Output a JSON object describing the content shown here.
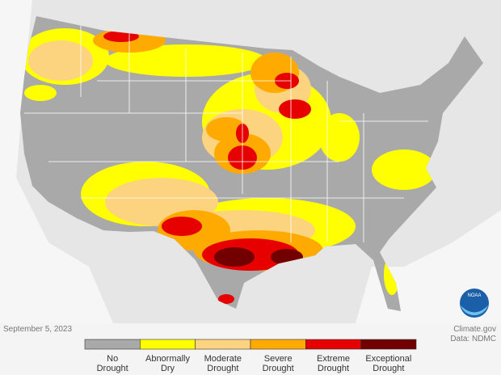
{
  "date": "September 5, 2023",
  "credits": [
    "Climate.gov",
    "Data: NDMC"
  ],
  "logo": "NOAA",
  "legend": [
    {
      "label_lines": [
        "No",
        "Drought"
      ],
      "color": "#a9a9a9"
    },
    {
      "label_lines": [
        "Abnormally",
        "Dry"
      ],
      "color": "#ffff00"
    },
    {
      "label_lines": [
        "Moderate",
        "Drought"
      ],
      "color": "#fcd37f"
    },
    {
      "label_lines": [
        "Severe",
        "Drought"
      ],
      "color": "#ffaa00"
    },
    {
      "label_lines": [
        "Extreme",
        "Drought"
      ],
      "color": "#e60000"
    },
    {
      "label_lines": [
        "Exceptional",
        "Drought"
      ],
      "color": "#730000"
    }
  ]
}
